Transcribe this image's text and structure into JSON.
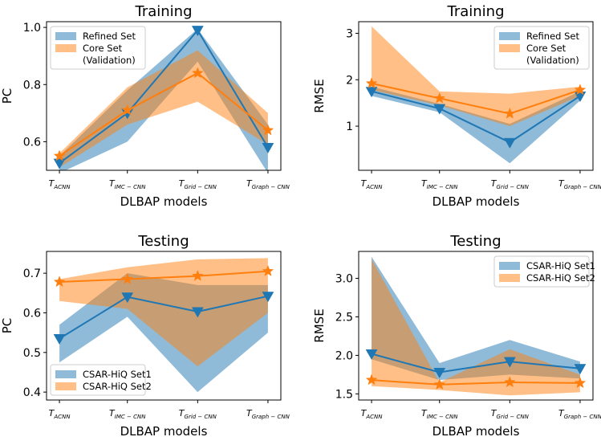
{
  "colors": {
    "blue": "#1f77b4",
    "orange": "#ff7f0e"
  },
  "chart_data": [
    {
      "type": "line",
      "title": "Training",
      "xlabel": "DLBAP models",
      "ylabel": "PC",
      "ylim": [
        0.5,
        1.02
      ],
      "yticks": [
        0.6,
        0.8,
        1.0
      ],
      "ytick_labels": [
        "0.6",
        "0.8",
        "1.0"
      ],
      "legend_position": "upper-left",
      "series": [
        {
          "name": "Refined Set",
          "marker": "down-triangle",
          "values": [
            0.525,
            0.7,
            0.99,
            0.58
          ],
          "low": [
            0.49,
            0.6,
            0.88,
            0.49
          ],
          "high": [
            0.55,
            0.78,
            0.995,
            0.66
          ]
        },
        {
          "name": "Core Set\n(Validation)",
          "marker": "star",
          "values": [
            0.55,
            0.71,
            0.84,
            0.64
          ],
          "low": [
            0.51,
            0.66,
            0.74,
            0.59
          ],
          "high": [
            0.56,
            0.79,
            0.92,
            0.7
          ]
        }
      ]
    },
    {
      "type": "line",
      "title": "Training",
      "xlabel": "DLBAP models",
      "ylabel": "RMSE",
      "ylim": [
        0.05,
        3.25
      ],
      "yticks": [
        1,
        2,
        3
      ],
      "ytick_labels": [
        "1",
        "2",
        "3"
      ],
      "legend_position": "upper-right",
      "series": [
        {
          "name": "Refined Set",
          "marker": "down-triangle",
          "values": [
            1.75,
            1.38,
            0.65,
            1.65
          ],
          "low": [
            1.65,
            1.3,
            0.2,
            1.55
          ],
          "high": [
            1.85,
            1.48,
            1.05,
            1.75
          ]
        },
        {
          "name": "Core Set\n(Validation)",
          "marker": "star",
          "values": [
            1.92,
            1.6,
            1.27,
            1.78
          ],
          "low": [
            1.78,
            1.45,
            1.0,
            1.65
          ],
          "high": [
            3.15,
            1.75,
            1.7,
            1.85
          ]
        }
      ]
    },
    {
      "type": "line",
      "title": "Testing",
      "xlabel": "DLBAP models",
      "ylabel": "PC",
      "ylim": [
        0.38,
        0.755
      ],
      "yticks": [
        0.4,
        0.5,
        0.6,
        0.7
      ],
      "ytick_labels": [
        "0.4",
        "0.5",
        "0.6",
        "0.7"
      ],
      "legend_position": "lower-left",
      "series": [
        {
          "name": "CSAR-HiQ Set1",
          "marker": "down-triangle",
          "values": [
            0.535,
            0.64,
            0.603,
            0.642
          ],
          "low": [
            0.475,
            0.59,
            0.4,
            0.55
          ],
          "high": [
            0.57,
            0.7,
            0.67,
            0.67
          ]
        },
        {
          "name": "CSAR-HiQ Set2",
          "marker": "star",
          "values": [
            0.678,
            0.685,
            0.693,
            0.705
          ],
          "low": [
            0.63,
            0.61,
            0.465,
            0.6
          ],
          "high": [
            0.685,
            0.715,
            0.735,
            0.738
          ]
        }
      ]
    },
    {
      "type": "line",
      "title": "Testing",
      "xlabel": "DLBAP models",
      "ylabel": "RMSE",
      "ylim": [
        1.42,
        3.35
      ],
      "yticks": [
        1.5,
        2.0,
        2.5,
        3.0
      ],
      "ytick_labels": [
        "1.5",
        "2.0",
        "2.5",
        "3.0"
      ],
      "legend_position": "upper-right",
      "series": [
        {
          "name": "CSAR-HiQ Set1",
          "marker": "down-triangle",
          "values": [
            2.02,
            1.78,
            1.92,
            1.83
          ],
          "low": [
            1.95,
            1.68,
            1.75,
            1.7
          ],
          "high": [
            3.28,
            1.9,
            2.2,
            1.92
          ]
        },
        {
          "name": "CSAR-HiQ Set2",
          "marker": "star",
          "values": [
            1.68,
            1.62,
            1.65,
            1.64
          ],
          "low": [
            1.6,
            1.55,
            1.48,
            1.52
          ],
          "high": [
            3.25,
            1.65,
            2.08,
            1.75
          ]
        }
      ]
    }
  ],
  "x_categories": [
    {
      "main": "T",
      "sub": "ACNN"
    },
    {
      "main": "T",
      "sub": "IMC − CNN"
    },
    {
      "main": "T",
      "sub": "Grid − CNN"
    },
    {
      "main": "T",
      "sub": "Graph − CNN"
    }
  ]
}
